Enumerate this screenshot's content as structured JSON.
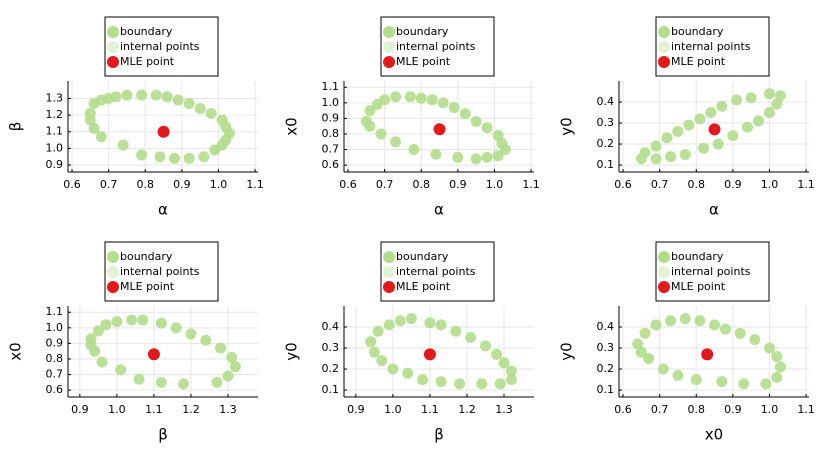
{
  "chart_data": [
    {
      "type": "scatter",
      "xlabel": "α",
      "ylabel": "β",
      "xlim": [
        0.589,
        1.108
      ],
      "ylim": [
        0.858,
        1.405
      ],
      "xticks": [
        0.6,
        0.7,
        0.8,
        0.9,
        {
          "value": 1,
          "label": "1.0"
        },
        1.1
      ],
      "yticks": [
        0.9,
        {
          "value": 1,
          "label": "1.0"
        },
        1.1,
        1.2,
        1.3
      ],
      "grid": true,
      "series": [
        {
          "name": "boundary",
          "color": "#b2dd8c",
          "x": [
            0.66,
            0.68,
            0.7,
            0.72,
            0.75,
            0.79,
            0.83,
            0.86,
            0.89,
            0.92,
            0.95,
            0.98,
            1.01,
            1.02,
            1.03,
            1.02,
            1.01,
            0.99,
            0.96,
            0.92,
            0.88,
            0.84,
            0.79,
            0.74,
            0.68,
            0.66,
            0.65,
            0.65
          ],
          "values": [
            1.27,
            1.29,
            1.3,
            1.31,
            1.32,
            1.32,
            1.32,
            1.31,
            1.29,
            1.27,
            1.24,
            1.21,
            1.17,
            1.13,
            1.09,
            1.05,
            1.02,
            0.99,
            0.95,
            0.94,
            0.94,
            0.95,
            0.96,
            1.02,
            1.07,
            1.12,
            1.17,
            1.21
          ]
        },
        {
          "name": "internal points",
          "color": "#e2f2d4",
          "x": [],
          "values": []
        },
        {
          "name": "MLE point",
          "color": "#e31a1c",
          "x": [
            0.85
          ],
          "values": [
            1.1
          ]
        }
      ]
    },
    {
      "type": "scatter",
      "xlabel": "α",
      "ylabel": "x0",
      "xlim": [
        0.589,
        1.108
      ],
      "ylim": [
        0.556,
        1.14
      ],
      "xticks": [
        0.6,
        0.7,
        0.8,
        0.9,
        {
          "value": 1,
          "label": "1.0"
        },
        1.1
      ],
      "yticks": [
        0.6,
        0.7,
        0.8,
        0.9,
        {
          "value": 1,
          "label": "1.0"
        },
        1.1
      ],
      "grid": true,
      "series": [
        {
          "name": "boundary",
          "color": "#b2dd8c",
          "x": [
            0.65,
            0.66,
            0.68,
            0.7,
            0.73,
            0.77,
            0.8,
            0.83,
            0.86,
            0.89,
            0.92,
            0.95,
            0.98,
            1.01,
            1.02,
            1.03,
            1.01,
            0.98,
            0.95,
            0.9,
            0.84,
            0.78,
            0.73,
            0.69,
            0.66
          ],
          "values": [
            0.88,
            0.95,
            0.99,
            1.02,
            1.04,
            1.04,
            1.03,
            1.02,
            1.0,
            0.97,
            0.93,
            0.88,
            0.84,
            0.79,
            0.74,
            0.7,
            0.66,
            0.65,
            0.64,
            0.65,
            0.67,
            0.7,
            0.75,
            0.8,
            0.85
          ]
        },
        {
          "name": "internal points",
          "color": "#e2f2d4",
          "x": [],
          "values": []
        },
        {
          "name": "MLE point",
          "color": "#e31a1c",
          "x": [
            0.85
          ],
          "values": [
            0.83
          ]
        }
      ]
    },
    {
      "type": "scatter",
      "xlabel": "α",
      "ylabel": "y0",
      "xlim": [
        0.589,
        1.108
      ],
      "ylim": [
        0.067,
        0.5
      ],
      "xticks": [
        0.6,
        0.7,
        0.8,
        0.9,
        {
          "value": 1,
          "label": "1.0"
        },
        1.1
      ],
      "yticks": [
        0.1,
        0.2,
        0.3,
        0.4
      ],
      "grid": true,
      "series": [
        {
          "name": "boundary",
          "color": "#b2dd8c",
          "x": [
            0.65,
            0.66,
            0.69,
            0.72,
            0.75,
            0.78,
            0.81,
            0.84,
            0.87,
            0.91,
            0.95,
            1.0,
            1.03,
            1.02,
            1.0,
            0.97,
            0.94,
            0.9,
            0.86,
            0.82,
            0.77,
            0.73,
            0.69
          ],
          "values": [
            0.13,
            0.16,
            0.19,
            0.23,
            0.26,
            0.29,
            0.32,
            0.35,
            0.38,
            0.41,
            0.42,
            0.44,
            0.43,
            0.39,
            0.35,
            0.31,
            0.28,
            0.24,
            0.2,
            0.18,
            0.15,
            0.14,
            0.13
          ]
        },
        {
          "name": "internal points",
          "color": "#e2f2d4",
          "x": [],
          "values": []
        },
        {
          "name": "MLE point",
          "color": "#e31a1c",
          "x": [
            0.85
          ],
          "values": [
            0.27
          ]
        }
      ]
    },
    {
      "type": "scatter",
      "xlabel": "β",
      "ylabel": "x0",
      "xlim": [
        0.868,
        1.381
      ],
      "ylim": [
        0.556,
        1.14
      ],
      "xticks": [
        0.9,
        {
          "value": 1,
          "label": "1.0"
        },
        1.1,
        1.2,
        1.3
      ],
      "yticks": [
        0.6,
        0.7,
        0.8,
        0.9,
        {
          "value": 1,
          "label": "1.0"
        },
        1.1
      ],
      "grid": true,
      "series": [
        {
          "name": "boundary",
          "color": "#b2dd8c",
          "x": [
            0.93,
            0.95,
            0.97,
            1.0,
            1.04,
            1.07,
            1.12,
            1.16,
            1.2,
            1.24,
            1.28,
            1.31,
            1.32,
            1.3,
            1.27,
            1.18,
            1.12,
            1.06,
            1.01,
            0.96,
            0.94,
            0.93
          ],
          "values": [
            0.93,
            0.98,
            1.02,
            1.04,
            1.05,
            1.05,
            1.03,
            1.0,
            0.96,
            0.92,
            0.87,
            0.81,
            0.75,
            0.69,
            0.65,
            0.64,
            0.65,
            0.67,
            0.73,
            0.78,
            0.85,
            0.89
          ]
        },
        {
          "name": "internal points",
          "color": "#e2f2d4",
          "x": [],
          "values": []
        },
        {
          "name": "MLE point",
          "color": "#e31a1c",
          "x": [
            1.1
          ],
          "values": [
            0.83
          ]
        }
      ]
    },
    {
      "type": "scatter",
      "xlabel": "β",
      "ylabel": "y0",
      "xlim": [
        0.868,
        1.381
      ],
      "ylim": [
        0.067,
        0.5
      ],
      "xticks": [
        0.9,
        {
          "value": 1,
          "label": "1.0"
        },
        1.1,
        1.2,
        1.3
      ],
      "yticks": [
        0.1,
        0.2,
        0.3,
        0.4
      ],
      "grid": true,
      "series": [
        {
          "name": "boundary",
          "color": "#b2dd8c",
          "x": [
            0.94,
            0.96,
            0.99,
            1.02,
            1.05,
            1.1,
            1.13,
            1.17,
            1.21,
            1.25,
            1.28,
            1.3,
            1.32,
            1.32,
            1.29,
            1.24,
            1.18,
            1.13,
            1.08,
            1.04,
            1.0,
            0.97,
            0.95
          ],
          "values": [
            0.33,
            0.38,
            0.41,
            0.43,
            0.44,
            0.42,
            0.41,
            0.38,
            0.35,
            0.31,
            0.27,
            0.23,
            0.19,
            0.15,
            0.13,
            0.13,
            0.13,
            0.14,
            0.15,
            0.18,
            0.2,
            0.24,
            0.28
          ]
        },
        {
          "name": "internal points",
          "color": "#e2f2d4",
          "x": [],
          "values": []
        },
        {
          "name": "MLE point",
          "color": "#e31a1c",
          "x": [
            1.1
          ],
          "values": [
            0.27
          ]
        }
      ]
    },
    {
      "type": "scatter",
      "xlabel": "x0",
      "ylabel": "y0",
      "xlim": [
        0.589,
        1.108
      ],
      "ylim": [
        0.067,
        0.5
      ],
      "xticks": [
        0.6,
        0.7,
        0.8,
        0.9,
        {
          "value": 1,
          "label": "1.0"
        },
        1.1
      ],
      "yticks": [
        0.1,
        0.2,
        0.3,
        0.4
      ],
      "grid": true,
      "series": [
        {
          "name": "boundary",
          "color": "#b2dd8c",
          "x": [
            0.64,
            0.66,
            0.69,
            0.73,
            0.77,
            0.81,
            0.85,
            0.88,
            0.92,
            0.96,
            1.0,
            1.02,
            1.03,
            1.02,
            0.99,
            0.93,
            0.87,
            0.8,
            0.75,
            0.71,
            0.67,
            0.65
          ],
          "values": [
            0.32,
            0.37,
            0.41,
            0.43,
            0.44,
            0.43,
            0.41,
            0.39,
            0.37,
            0.34,
            0.3,
            0.26,
            0.21,
            0.16,
            0.13,
            0.13,
            0.14,
            0.15,
            0.17,
            0.2,
            0.25,
            0.28
          ]
        },
        {
          "name": "internal points",
          "color": "#e2f2d4",
          "x": [],
          "values": []
        },
        {
          "name": "MLE point",
          "color": "#e31a1c",
          "x": [
            0.83
          ],
          "values": [
            0.27
          ]
        }
      ]
    }
  ]
}
